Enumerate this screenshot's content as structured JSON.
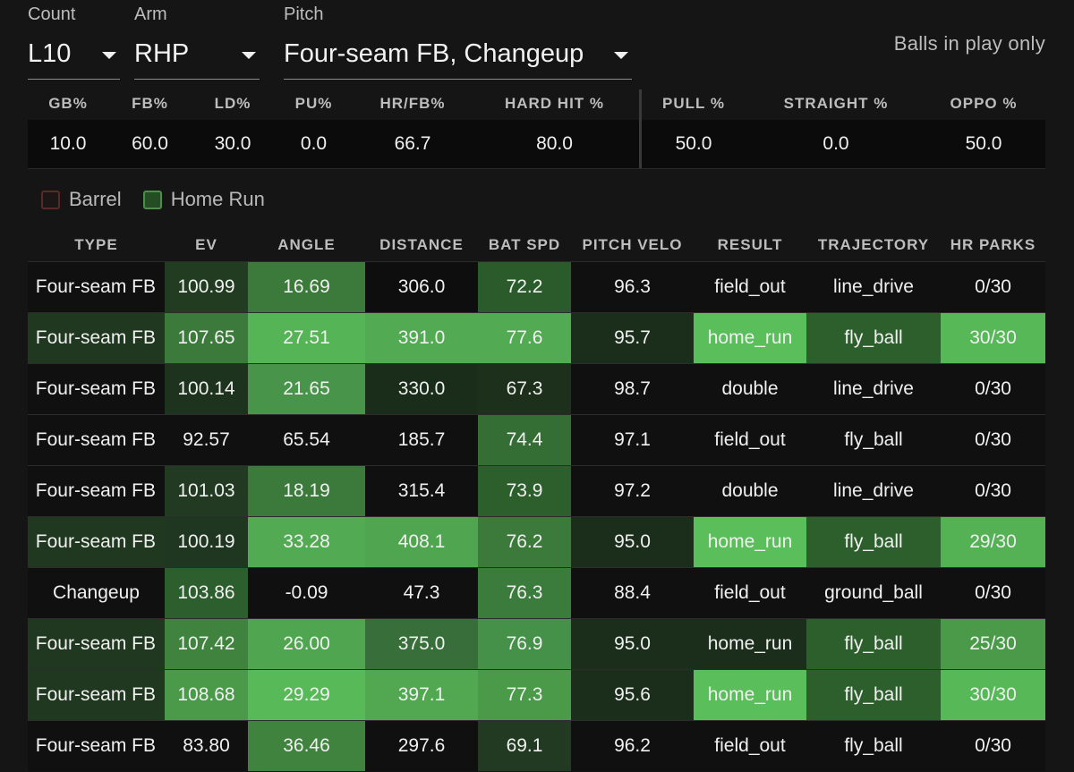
{
  "filters": {
    "count": {
      "label": "Count",
      "value": "L10"
    },
    "arm": {
      "label": "Arm",
      "value": "RHP"
    },
    "pitch": {
      "label": "Pitch",
      "value": "Four-seam FB, Changeup"
    },
    "balls_in_play": "Balls in play only"
  },
  "summary": {
    "headers": [
      "GB%",
      "FB%",
      "LD%",
      "PU%",
      "HR/FB%",
      "HARD HIT %",
      "PULL %",
      "STRAIGHT %",
      "OPPO %"
    ],
    "values": [
      "10.0",
      "60.0",
      "30.0",
      "0.0",
      "66.7",
      "80.0",
      "50.0",
      "0.0",
      "50.0"
    ]
  },
  "legend": {
    "barrel": "Barrel",
    "home_run": "Home Run"
  },
  "table": {
    "headers": [
      "TYPE",
      "EV",
      "ANGLE",
      "DISTANCE",
      "BAT SPD",
      "PITCH VELO",
      "RESULT",
      "TRAJECTORY",
      "HR PARKS"
    ],
    "rows": [
      {
        "hr": false,
        "cells": [
          "Four-seam FB",
          "100.99",
          "16.69",
          "306.0",
          "72.2",
          "96.3",
          "field_out",
          "line_drive",
          "0/30"
        ]
      },
      {
        "hr": true,
        "cells": [
          "Four-seam FB",
          "107.65",
          "27.51",
          "391.0",
          "77.6",
          "95.7",
          "home_run",
          "fly_ball",
          "30/30"
        ]
      },
      {
        "hr": false,
        "cells": [
          "Four-seam FB",
          "100.14",
          "21.65",
          "330.0",
          "67.3",
          "98.7",
          "double",
          "line_drive",
          "0/30"
        ]
      },
      {
        "hr": false,
        "cells": [
          "Four-seam FB",
          "92.57",
          "65.54",
          "185.7",
          "74.4",
          "97.1",
          "field_out",
          "fly_ball",
          "0/30"
        ]
      },
      {
        "hr": false,
        "cells": [
          "Four-seam FB",
          "101.03",
          "18.19",
          "315.4",
          "73.9",
          "97.2",
          "double",
          "line_drive",
          "0/30"
        ]
      },
      {
        "hr": true,
        "cells": [
          "Four-seam FB",
          "100.19",
          "33.28",
          "408.1",
          "76.2",
          "95.0",
          "home_run",
          "fly_ball",
          "29/30"
        ]
      },
      {
        "hr": false,
        "cells": [
          "Changeup",
          "103.86",
          "-0.09",
          "47.3",
          "76.3",
          "88.4",
          "field_out",
          "ground_ball",
          "0/30"
        ]
      },
      {
        "hr": true,
        "cells": [
          "Four-seam FB",
          "107.42",
          "26.00",
          "375.0",
          "76.9",
          "95.0",
          "home_run",
          "fly_ball",
          "25/30"
        ]
      },
      {
        "hr": true,
        "cells": [
          "Four-seam FB",
          "108.68",
          "29.29",
          "397.1",
          "77.3",
          "95.6",
          "home_run",
          "fly_ball",
          "30/30"
        ]
      },
      {
        "hr": false,
        "cells": [
          "Four-seam FB",
          "83.80",
          "36.46",
          "297.6",
          "69.1",
          "96.2",
          "field_out",
          "fly_ball",
          "0/30"
        ]
      }
    ],
    "cell_colors": [
      [
        "#101010",
        "#213c21",
        "#3c7a3c",
        "#0e0e0e",
        "#2b5a2b",
        "#101010",
        "#101010",
        "#101010",
        "#101010"
      ],
      [
        "#203820",
        "#3b7a3b",
        "#55b455",
        "#52ab52",
        "#52ab52",
        "#1b2d1b",
        "#5abe5a",
        "#2d5f2d",
        "#57b857"
      ],
      [
        "#101010",
        "#1d331d",
        "#47944a",
        "#1a2d1a",
        "#1c301c",
        "#101010",
        "#101010",
        "#101010",
        "#101010"
      ],
      [
        "#101010",
        "#101010",
        "#101010",
        "#101010",
        "#356e35",
        "#101010",
        "#101010",
        "#101010",
        "#101010"
      ],
      [
        "#101010",
        "#213a21",
        "#3c7a3c",
        "#101010",
        "#2d5f2d",
        "#101010",
        "#101010",
        "#101010",
        "#101010"
      ],
      [
        "#203820",
        "#1f3620",
        "#52ab52",
        "#50a650",
        "#3b7a3b",
        "#1b2d1b",
        "#5abe5a",
        "#2d5f2d",
        "#54b154"
      ],
      [
        "#101010",
        "#2d5e2d",
        "#101010",
        "#101010",
        "#3b7b3b",
        "#101010",
        "#101010",
        "#101010",
        "#101010"
      ],
      [
        "#203820",
        "#3f833f",
        "#50a650",
        "#386e39",
        "#46914a",
        "#1b2d1b",
        "#1b2d1b",
        "#2d5f2d",
        "#4a9a4a"
      ],
      [
        "#203820",
        "#4a9a4a",
        "#58b958",
        "#51a851",
        "#4a9a4a",
        "#1b2d1b",
        "#5abe5a",
        "#2d5f2d",
        "#57b857"
      ],
      [
        "#101010",
        "#101010",
        "#3f833f",
        "#101010",
        "#213a21",
        "#101010",
        "#101010",
        "#101010",
        "#101010"
      ]
    ]
  }
}
